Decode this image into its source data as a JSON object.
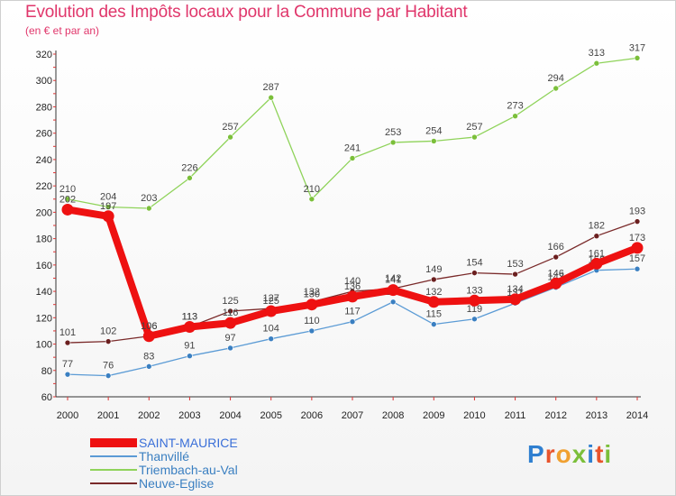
{
  "header": {
    "title": "Evolution des Impôts locaux pour la Commune par Habitant",
    "subtitle": "(en € et par an)"
  },
  "logo": {
    "text": "Proxiti",
    "colors": [
      "#2f7fd0",
      "#e8542c",
      "#f0a030",
      "#7bbf3a",
      "#2f7fd0",
      "#e8542c",
      "#7bbf3a"
    ]
  },
  "chart_data": {
    "type": "line",
    "title": "Evolution des Impôts locaux pour la Commune par Habitant",
    "subtitle": "(en € et par an)",
    "xlabel": "",
    "ylabel": "",
    "x": [
      "2000",
      "2001",
      "2002",
      "2003",
      "2004",
      "2005",
      "2006",
      "2007",
      "2008",
      "2009",
      "2010",
      "2011",
      "2012",
      "2013",
      "2014"
    ],
    "ylim": [
      60,
      320
    ],
    "yticks": [
      60,
      80,
      100,
      120,
      140,
      160,
      180,
      200,
      220,
      240,
      260,
      280,
      300,
      320
    ],
    "grid": false,
    "legend_position": "bottom-left",
    "series": [
      {
        "name": "Triembach-au-Val",
        "color": "#8fd35a",
        "marker": "#7bbf3a",
        "emphasis": false,
        "values": [
          210,
          204,
          203,
          226,
          257,
          287,
          210,
          241,
          253,
          254,
          257,
          273,
          294,
          313,
          317
        ]
      },
      {
        "name": "Neuve-Eglise",
        "color": "#7a2a2a",
        "marker": "#6b1f1f",
        "emphasis": false,
        "values": [
          101,
          102,
          106,
          113,
          125,
          127,
          132,
          140,
          142,
          149,
          154,
          153,
          166,
          182,
          193
        ]
      },
      {
        "name": "Thanvillé",
        "color": "#5b9bd5",
        "marker": "#3a7fc1",
        "emphasis": false,
        "values": [
          77,
          76,
          83,
          91,
          97,
          104,
          110,
          117,
          132,
          115,
          119,
          131,
          143,
          156,
          157
        ]
      },
      {
        "name": "SAINT-MAURICE",
        "color": "#ee1111",
        "marker": "#ee1111",
        "emphasis": true,
        "values": [
          202,
          197,
          106,
          113,
          116,
          125,
          130,
          136,
          141,
          132,
          133,
          134,
          146,
          161,
          173
        ]
      }
    ],
    "legend_order": [
      "SAINT-MAURICE",
      "Thanvillé",
      "Triembach-au-Val",
      "Neuve-Eglise"
    ]
  }
}
